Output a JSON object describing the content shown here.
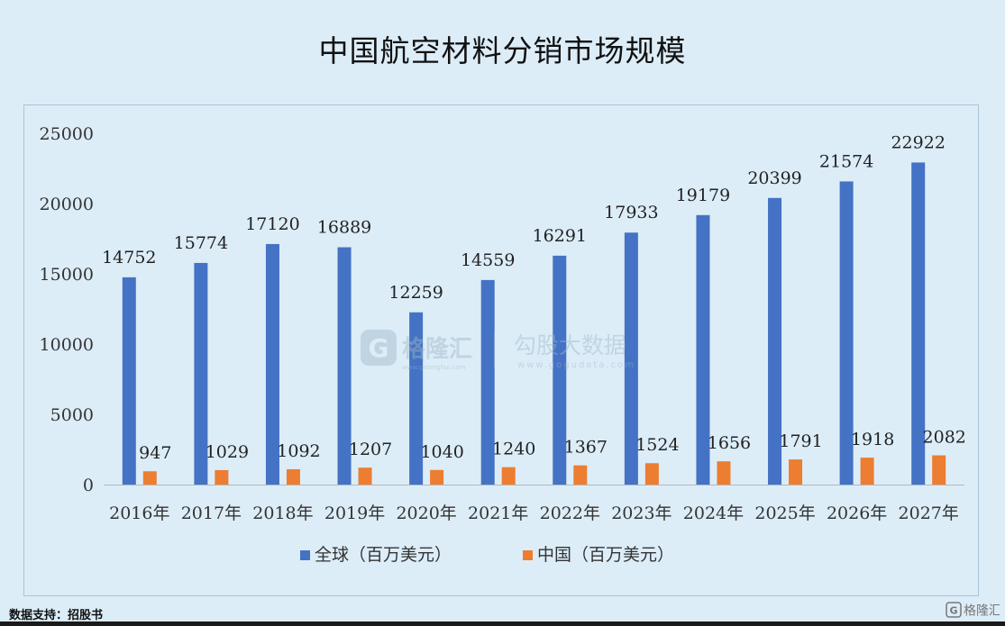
{
  "title": "中国航空材料分销市场规模",
  "source": "数据支持：招股书",
  "watermark": {
    "brand_text": "格隆汇",
    "brand_url": "www.gelonghui.com",
    "partner_text": "勾股大数据",
    "partner_url": "www.gogudata.com",
    "icon": "gelonghui-logo-icon"
  },
  "corner_logo_text": "格隆汇",
  "chart_data": {
    "type": "bar",
    "categories": [
      "2016年",
      "2017年",
      "2018年",
      "2019年",
      "2020年",
      "2021年",
      "2022年",
      "2023年",
      "2024年",
      "2025年",
      "2026年",
      "2027年"
    ],
    "series": [
      {
        "name": "全球（百万美元）",
        "color": "#4472c4",
        "values": [
          14752,
          15774,
          17120,
          16889,
          12259,
          14559,
          16291,
          17933,
          19179,
          20399,
          21574,
          22922
        ]
      },
      {
        "name": "中国（百万美元）",
        "color": "#ed7d31",
        "values": [
          947,
          1029,
          1092,
          1207,
          1040,
          1240,
          1367,
          1524,
          1656,
          1791,
          1918,
          2082
        ]
      }
    ],
    "ylim": [
      0,
      25000
    ],
    "yticks": [
      0,
      5000,
      10000,
      15000,
      20000,
      25000
    ],
    "grid": false,
    "legend": "bottom",
    "data_labels": true
  }
}
